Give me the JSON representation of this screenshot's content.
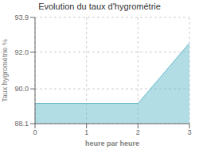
{
  "chart_data": {
    "type": "area",
    "title": "Evolution du taux d'hygrométrie",
    "xlabel": "heure par heure",
    "ylabel": "Taux hygrométrie %",
    "x": [
      0,
      1,
      2,
      3
    ],
    "values": [
      89.2,
      89.2,
      89.2,
      92.5
    ],
    "color": "#66bbcc",
    "xlim": [
      0,
      3
    ],
    "ylim": [
      88.1,
      93.9
    ],
    "xticks": [
      0,
      1,
      2,
      3
    ],
    "yticks": [
      88.1,
      {
        "value": 90,
        "label": "90.0"
      },
      {
        "value": 92,
        "label": "92.0"
      },
      93.9
    ],
    "grid": true
  }
}
